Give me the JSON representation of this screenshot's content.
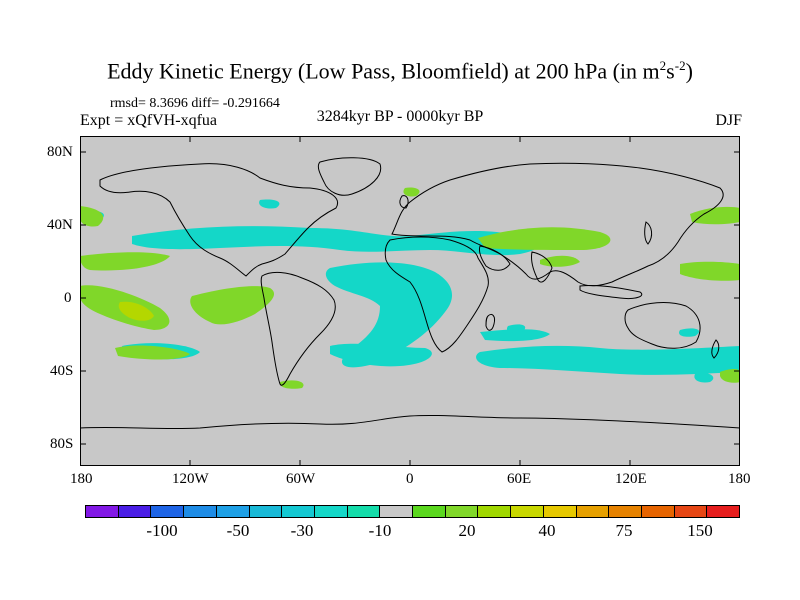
{
  "title": {
    "main": "Eddy Kinetic Energy (Low Pass, Bloomfield) at 200 hPa (in m",
    "sup1": "2",
    "mid": "s",
    "sup2": "-2",
    "end": ")"
  },
  "stats": "rmsd= 8.3696 diff= -0.291664",
  "expt": "Expt = xQfVH-xqfua",
  "period": "3284kyr BP - 0000kyr BP",
  "season": "DJF",
  "axes": {
    "lat_ticks": [
      "80N",
      "40N",
      "0",
      "40S",
      "80S"
    ],
    "lon_ticks": [
      "180",
      "120W",
      "60W",
      "0",
      "60E",
      "120E",
      "180"
    ]
  },
  "colors": {
    "ocean_background": "#c8c8c8",
    "coastline": "#000000",
    "cyan_anomaly": "#14d7c8",
    "green_anomaly": "#80d729",
    "yellow_green_anomaly": "#b4d700"
  },
  "colorbar": {
    "colors": [
      "#8218e6",
      "#4a1ee6",
      "#1e64e6",
      "#1e8ce6",
      "#1ea0e6",
      "#19b9d7",
      "#14c8d2",
      "#14d7c8",
      "#14dcaa",
      "#c8c8c8",
      "#5ad71e",
      "#80d729",
      "#a0d700",
      "#c8d700",
      "#e6c800",
      "#e6a000",
      "#e68200",
      "#e66400",
      "#e64614",
      "#e61e1e"
    ],
    "labels": [
      "-100",
      "-50",
      "-30",
      "-10",
      "20",
      "40",
      "75",
      "150"
    ]
  }
}
